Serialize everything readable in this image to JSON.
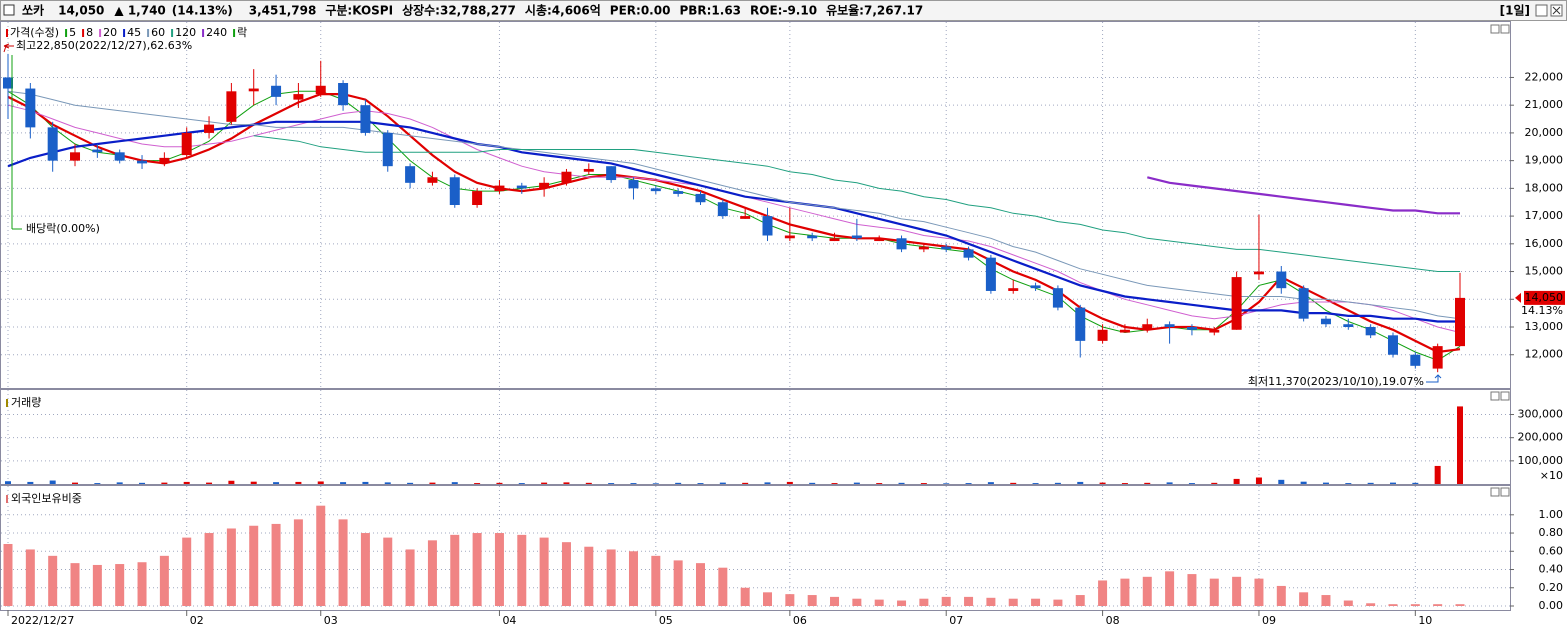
{
  "header": {
    "name": "쏘카",
    "price": "14,050",
    "change": "▲ 1,740",
    "change_pct": "(14.13%)",
    "fields": [
      "3,451,798",
      "구분:KOSPI",
      "상장수:32,788,277",
      "시총:4,606억",
      "PER:0.00",
      "PBR:1.63",
      "ROE:-9.10",
      "유보율:7,267.17"
    ],
    "period": "[1일]"
  },
  "chart_data": [
    {
      "type": "candlestick",
      "name": "가격(수정)",
      "up_color": "#e00000",
      "down_color": "#1a5fc8",
      "categories": [
        "2022/12/27",
        null,
        null,
        null,
        null,
        null,
        null,
        null,
        "02",
        null,
        null,
        null,
        null,
        null,
        "03",
        null,
        null,
        null,
        null,
        null,
        null,
        null,
        "04",
        null,
        null,
        null,
        null,
        null,
        null,
        "05",
        null,
        null,
        null,
        null,
        null,
        "06",
        null,
        null,
        null,
        null,
        null,
        null,
        "07",
        null,
        null,
        null,
        null,
        null,
        null,
        "08",
        null,
        null,
        null,
        null,
        null,
        null,
        "09",
        null,
        null,
        null,
        null,
        null,
        null,
        "10",
        null,
        null
      ],
      "open": [
        22000,
        21600,
        20200,
        19000,
        19400,
        19300,
        19000,
        18900,
        19200,
        20000,
        20400,
        21500,
        21700,
        21200,
        21400,
        21800,
        21000,
        20000,
        18800,
        18200,
        18400,
        17400,
        17900,
        18100,
        18000,
        18200,
        18600,
        18800,
        18300,
        18000,
        17900,
        17800,
        17500,
        16900,
        17000,
        16200,
        16300,
        16100,
        16300,
        16100,
        16200,
        15800,
        15900,
        15800,
        15500,
        14300,
        14500,
        14400,
        13700,
        12500,
        12800,
        12900,
        13100,
        13000,
        12800,
        12900,
        14900,
        15000,
        14400,
        13300,
        13100,
        13000,
        12700,
        12000,
        11500,
        12310
      ],
      "high": [
        22850,
        21800,
        20400,
        19600,
        19600,
        19400,
        19200,
        19300,
        20200,
        20600,
        21800,
        22300,
        22100,
        21800,
        22600,
        21900,
        21200,
        20100,
        18900,
        18600,
        18500,
        18000,
        18300,
        18200,
        18400,
        18700,
        18900,
        18800,
        18400,
        18100,
        18000,
        17900,
        17600,
        17300,
        17300,
        17300,
        16400,
        16400,
        16900,
        16300,
        16300,
        16000,
        16000,
        15900,
        15600,
        14700,
        14600,
        14500,
        13800,
        13100,
        13100,
        13300,
        13200,
        13100,
        13000,
        15000,
        17050,
        15200,
        14500,
        13400,
        13300,
        13100,
        12800,
        12100,
        12400,
        14950
      ],
      "low": [
        20500,
        19800,
        18600,
        18800,
        19100,
        18900,
        18700,
        18800,
        19100,
        19800,
        20300,
        21000,
        21000,
        20900,
        21300,
        20800,
        19900,
        18600,
        18000,
        18100,
        17300,
        17300,
        17800,
        17800,
        17700,
        18100,
        18500,
        18200,
        17600,
        17800,
        17700,
        17400,
        16900,
        16900,
        16100,
        16100,
        16100,
        16100,
        16100,
        16100,
        15700,
        15700,
        15700,
        15400,
        14200,
        14200,
        14300,
        13600,
        11900,
        12400,
        12800,
        12800,
        12400,
        12700,
        12700,
        12900,
        14700,
        14200,
        13200,
        13000,
        12900,
        12600,
        11900,
        11500,
        11370,
        12310
      ],
      "close": [
        21600,
        20200,
        19000,
        19300,
        19300,
        19000,
        18900,
        19100,
        20000,
        20300,
        21500,
        21600,
        21300,
        21400,
        21700,
        21000,
        20000,
        18800,
        18200,
        18400,
        17400,
        17900,
        18100,
        18000,
        18200,
        18600,
        18700,
        18300,
        18000,
        17900,
        17800,
        17500,
        17000,
        17000,
        16300,
        16300,
        16200,
        16200,
        16200,
        16200,
        15800,
        15900,
        15800,
        15500,
        14300,
        14400,
        14400,
        13700,
        12500,
        12900,
        12900,
        13100,
        13000,
        12900,
        12900,
        14800,
        15000,
        14400,
        13300,
        13100,
        13000,
        12700,
        12000,
        11600,
        12310,
        14050
      ],
      "last_value_label": "14,050",
      "last_change_label": "14.13%",
      "series": [
        {
          "name": "5",
          "color": "#10a010",
          "values": [
            21500,
            21000,
            20200,
            19600,
            19300,
            19200,
            19000,
            19000,
            19300,
            19700,
            20400,
            21000,
            21400,
            21500,
            21500,
            21200,
            20600,
            19800,
            19000,
            18400,
            18000,
            17900,
            17900,
            18000,
            18100,
            18300,
            18500,
            18500,
            18300,
            18100,
            17900,
            17700,
            17300,
            17100,
            16700,
            16400,
            16300,
            16200,
            16200,
            16200,
            16000,
            15900,
            15800,
            15700,
            15100,
            14700,
            14400,
            14100,
            13400,
            13000,
            12800,
            12900,
            13000,
            12900,
            12900,
            13600,
            14500,
            14700,
            14200,
            13600,
            13200,
            12900,
            12500,
            12100,
            11800,
            12300
          ]
        },
        {
          "name": "8",
          "color": "#e00000",
          "values": [
            21300,
            20900,
            20300,
            19900,
            19500,
            19200,
            19000,
            18900,
            19100,
            19400,
            19800,
            20300,
            20700,
            21100,
            21400,
            21400,
            21200,
            20600,
            19900,
            19200,
            18600,
            18200,
            18000,
            17900,
            18000,
            18200,
            18400,
            18500,
            18400,
            18300,
            18100,
            17900,
            17600,
            17300,
            17000,
            16700,
            16500,
            16300,
            16200,
            16200,
            16100,
            16000,
            15900,
            15800,
            15400,
            15000,
            14700,
            14300,
            13700,
            13300,
            13000,
            12900,
            13000,
            13000,
            12900,
            13300,
            13900,
            14800,
            14400,
            14000,
            13600,
            13200,
            12900,
            12500,
            12100,
            12200
          ]
        },
        {
          "name": "20",
          "color": "#d060d0",
          "values": [
            21000,
            20800,
            20500,
            20200,
            20000,
            19800,
            19600,
            19500,
            19500,
            19600,
            19700,
            19900,
            20100,
            20300,
            20500,
            20700,
            20800,
            20700,
            20500,
            20200,
            19800,
            19400,
            19100,
            18800,
            18600,
            18500,
            18400,
            18400,
            18400,
            18300,
            18200,
            18100,
            17900,
            17700,
            17500,
            17300,
            17100,
            16900,
            16700,
            16600,
            16500,
            16300,
            16200,
            16100,
            15900,
            15600,
            15300,
            15000,
            14600,
            14300,
            14000,
            13800,
            13600,
            13400,
            13300,
            13400,
            13600,
            13800,
            13900,
            13900,
            13900,
            13800,
            13600,
            13300,
            13000,
            12800
          ]
        },
        {
          "name": "45",
          "color": "#0a1ec8",
          "values": [
            18800,
            19100,
            19300,
            19500,
            19600,
            19700,
            19800,
            19900,
            20000,
            20100,
            20200,
            20300,
            20400,
            20400,
            20400,
            20400,
            20400,
            20300,
            20200,
            20000,
            19800,
            19600,
            19500,
            19300,
            19200,
            19100,
            19000,
            18900,
            18700,
            18500,
            18300,
            18100,
            17900,
            17700,
            17600,
            17500,
            17400,
            17300,
            17100,
            16900,
            16700,
            16500,
            16300,
            16000,
            15700,
            15400,
            15100,
            14800,
            14500,
            14300,
            14100,
            14000,
            13900,
            13800,
            13700,
            13600,
            13600,
            13600,
            13500,
            13500,
            13400,
            13400,
            13300,
            13300,
            13200,
            13200
          ]
        },
        {
          "name": "60",
          "color": "#7a98b8",
          "values": [
            21500,
            21400,
            21200,
            21000,
            20900,
            20800,
            20700,
            20600,
            20500,
            20400,
            20300,
            20300,
            20200,
            20200,
            20200,
            20200,
            20100,
            20000,
            19900,
            19800,
            19700,
            19600,
            19500,
            19400,
            19300,
            19200,
            19100,
            19000,
            18900,
            18700,
            18500,
            18300,
            18100,
            17900,
            17700,
            17500,
            17400,
            17300,
            17200,
            17100,
            16900,
            16800,
            16600,
            16400,
            16200,
            15900,
            15700,
            15400,
            15100,
            14900,
            14700,
            14500,
            14400,
            14300,
            14200,
            14100,
            14100,
            14100,
            14000,
            14000,
            13900,
            13800,
            13700,
            13600,
            13400,
            13300
          ]
        },
        {
          "name": "120",
          "color": "#20a080",
          "values": [
            null,
            null,
            null,
            null,
            null,
            null,
            null,
            null,
            null,
            null,
            null,
            19900,
            19800,
            19700,
            19500,
            19400,
            19300,
            19300,
            19300,
            19300,
            19300,
            19300,
            19400,
            19400,
            19400,
            19400,
            19400,
            19400,
            19400,
            19300,
            19200,
            19100,
            19000,
            18900,
            18800,
            18600,
            18500,
            18300,
            18200,
            18000,
            17900,
            17700,
            17600,
            17400,
            17300,
            17100,
            17000,
            16800,
            16700,
            16500,
            16400,
            16200,
            16100,
            16000,
            15900,
            15800,
            15800,
            15700,
            15600,
            15500,
            15400,
            15300,
            15200,
            15100,
            15000,
            15000
          ]
        },
        {
          "name": "240",
          "color": "#8a2cc8",
          "values": [
            null,
            null,
            null,
            null,
            null,
            null,
            null,
            null,
            null,
            null,
            null,
            null,
            null,
            null,
            null,
            null,
            null,
            null,
            null,
            null,
            null,
            null,
            null,
            null,
            null,
            null,
            null,
            null,
            null,
            null,
            null,
            null,
            null,
            null,
            null,
            null,
            null,
            null,
            null,
            null,
            null,
            null,
            null,
            null,
            null,
            null,
            null,
            null,
            null,
            null,
            null,
            18400,
            18200,
            18100,
            18000,
            17900,
            17800,
            17700,
            17600,
            17500,
            17400,
            17300,
            17200,
            17200,
            17100,
            17100
          ]
        }
      ],
      "event_label": "락",
      "event_color": "#10a010",
      "ylim": [
        10800,
        24000
      ],
      "yticks": [
        {
          "value": 12000,
          "label": "12,000"
        },
        {
          "value": 13000,
          "label": "13,000"
        },
        {
          "value": 14000,
          "label": "14,000"
        },
        {
          "value": 15000,
          "label": "15,000"
        },
        {
          "value": 16000,
          "label": "16,000"
        },
        {
          "value": 17000,
          "label": "17,000"
        },
        {
          "value": 18000,
          "label": "18,000"
        },
        {
          "value": 19000,
          "label": "19,000"
        },
        {
          "value": 20000,
          "label": "20,000"
        },
        {
          "value": 21000,
          "label": "21,000"
        },
        {
          "value": 22000,
          "label": "22,000"
        }
      ],
      "annotations": [
        "최고22,850(2022/12/27),62.63%",
        "배당락(0.00%)",
        "최저11,370(2023/10/10),19.07%"
      ]
    },
    {
      "type": "bar",
      "title": "거래량",
      "unit_label": "×10",
      "values": [
        12000,
        9000,
        15000,
        6000,
        4000,
        7000,
        5000,
        6000,
        9000,
        6000,
        14000,
        10000,
        8000,
        9000,
        11000,
        8000,
        9000,
        7000,
        5000,
        6000,
        8000,
        4000,
        5000,
        4000,
        6000,
        7000,
        5000,
        4000,
        4000,
        3000,
        5000,
        4000,
        6000,
        5000,
        7000,
        9000,
        5000,
        4000,
        6000,
        4000,
        5000,
        4000,
        3000,
        4000,
        8000,
        5000,
        4000,
        5000,
        9000,
        6000,
        4000,
        5000,
        7000,
        4000,
        5000,
        22000,
        28000,
        18000,
        10000,
        6000,
        4000,
        5000,
        6000,
        5000,
        78000,
        335000
      ],
      "ylim": [
        0,
        380000
      ],
      "yticks": [
        {
          "value": 100000,
          "label": "100,000"
        },
        {
          "value": 200000,
          "label": "200,000"
        },
        {
          "value": 300000,
          "label": "300,000"
        }
      ]
    },
    {
      "type": "bar",
      "title": "외국인보유비중",
      "color": "#f08484",
      "values": [
        0.68,
        0.62,
        0.55,
        0.47,
        0.45,
        0.46,
        0.48,
        0.55,
        0.75,
        0.8,
        0.85,
        0.88,
        0.9,
        0.95,
        1.1,
        0.95,
        0.8,
        0.75,
        0.62,
        0.72,
        0.78,
        0.8,
        0.8,
        0.78,
        0.75,
        0.7,
        0.65,
        0.62,
        0.6,
        0.55,
        0.5,
        0.47,
        0.42,
        0.2,
        0.15,
        0.13,
        0.12,
        0.1,
        0.08,
        0.07,
        0.06,
        0.08,
        0.1,
        0.1,
        0.09,
        0.08,
        0.08,
        0.07,
        0.12,
        0.28,
        0.3,
        0.32,
        0.38,
        0.35,
        0.3,
        0.32,
        0.3,
        0.22,
        0.15,
        0.12,
        0.06,
        0.03,
        0.02,
        0.02,
        0.02,
        0.02
      ],
      "ylim": [
        0,
        1.25
      ],
      "yticks": [
        {
          "value": 0,
          "label": "0.00"
        },
        {
          "value": 0.2,
          "label": "0.20"
        },
        {
          "value": 0.4,
          "label": "0.40"
        },
        {
          "value": 0.6,
          "label": "0.60"
        },
        {
          "value": 0.8,
          "label": "0.80"
        },
        {
          "value": 1,
          "label": "1.00"
        }
      ]
    }
  ]
}
